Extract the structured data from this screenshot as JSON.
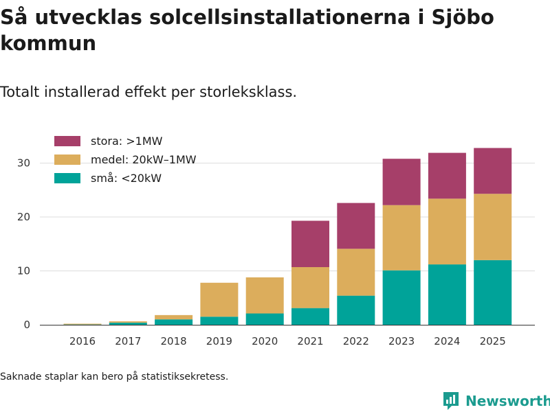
{
  "title": "Så utvecklas solcellsinstallationerna i Sjöbo kommun",
  "subtitle": "Totalt installerad effekt per storleksklass.",
  "note": "Saknade staplar kan bero på statistiksekretess.",
  "brand": {
    "name": "Newsworthy",
    "color": "#1b9b8f"
  },
  "chart_data": {
    "type": "bar",
    "stacked": true,
    "categories": [
      "2016",
      "2017",
      "2018",
      "2019",
      "2020",
      "2021",
      "2022",
      "2023",
      "2024",
      "2025"
    ],
    "series": [
      {
        "name": "små: <20kW",
        "color": "#00a399",
        "values": [
          0.05,
          0.4,
          1.0,
          1.5,
          2.1,
          3.1,
          5.4,
          10.1,
          11.2,
          12.0
        ]
      },
      {
        "name": "medel: 20kW–1MW",
        "color": "#dcad5c",
        "values": [
          0.15,
          0.25,
          0.8,
          6.3,
          6.7,
          7.6,
          8.7,
          12.1,
          12.2,
          12.3
        ]
      },
      {
        "name": "stora: >1MW",
        "color": "#a63f69",
        "values": [
          0,
          0,
          0,
          0,
          0,
          8.6,
          8.5,
          8.6,
          8.5,
          8.5
        ]
      }
    ],
    "legend_order": [
      2,
      1,
      0
    ],
    "yticks": [
      0,
      10,
      20,
      30
    ],
    "ylim": [
      0,
      33
    ],
    "xlabel": "",
    "ylabel": "",
    "legend_position": "top-left",
    "grid": true
  }
}
